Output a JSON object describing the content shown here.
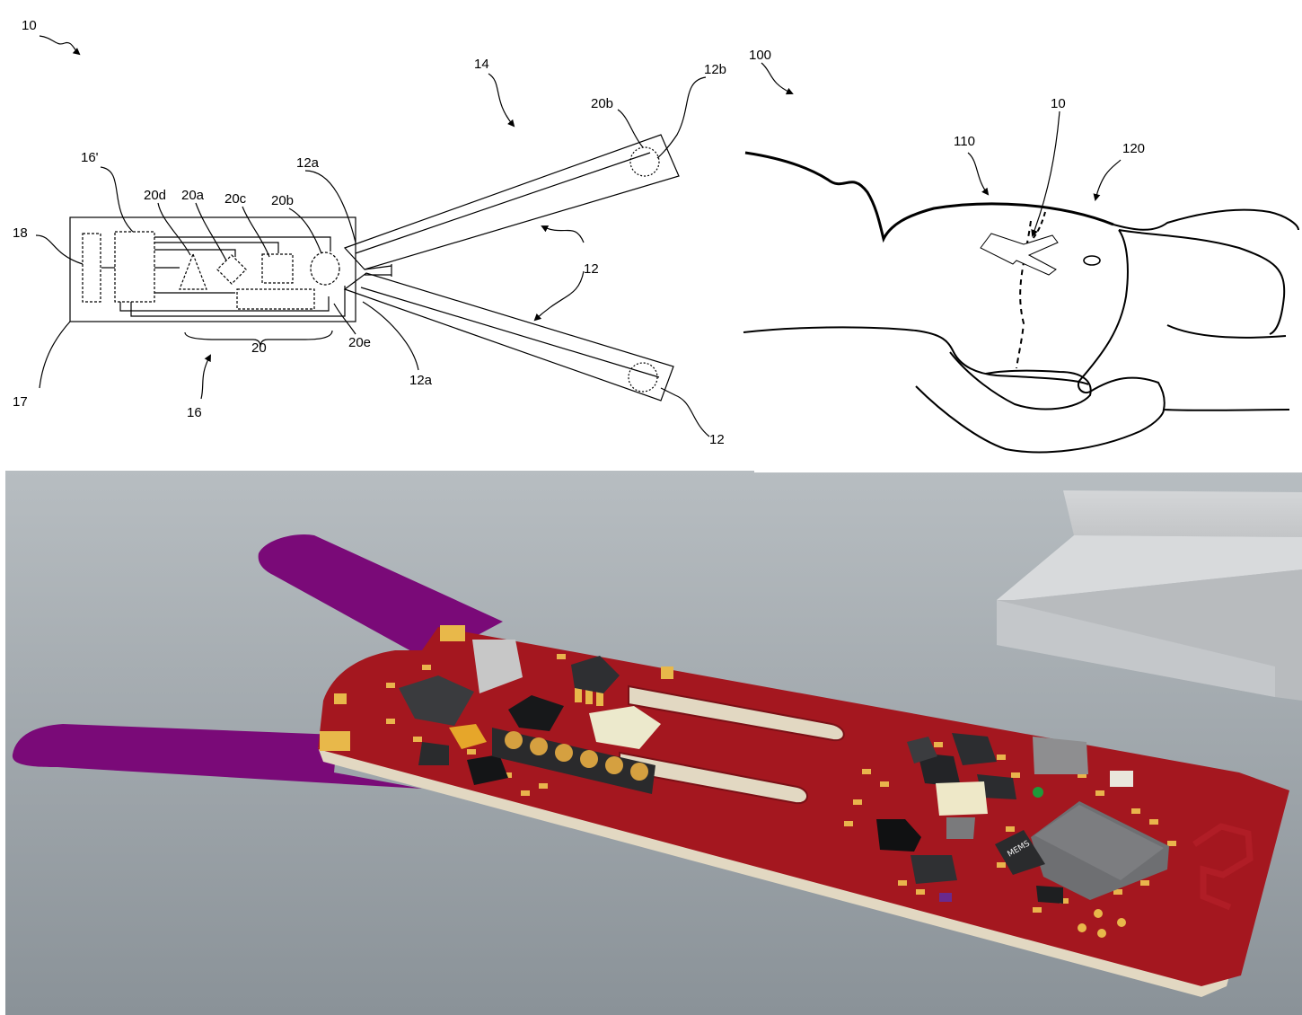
{
  "figure_a": {
    "ref_10": "10",
    "ref_14": "14",
    "ref_12b": "12b",
    "ref_12_upper": "12",
    "ref_12_lower": "12",
    "ref_16p": "16'",
    "ref_18": "18",
    "ref_17": "17",
    "ref_16": "16",
    "ref_20": "20",
    "ref_20a": "20a",
    "ref_20b_inner": "20b",
    "ref_20b_tip": "20b",
    "ref_20c": "20c",
    "ref_20d": "20d",
    "ref_20e": "20e",
    "ref_12a_upper": "12a",
    "ref_12a_lower": "12a"
  },
  "figure_b": {
    "ref_100": "100",
    "ref_10": "10",
    "ref_110": "110",
    "ref_120": "120"
  },
  "figure_c": {
    "description_colors": {
      "background_top": "#b6bcc0",
      "background_bottom": "#8c949a",
      "pcb_red": "#a4171f",
      "flex_purple": "#7a0a78",
      "substrate": "#e6ddc8",
      "pad_gold": "#e8b84a"
    },
    "chip_marking": "MEMS"
  }
}
